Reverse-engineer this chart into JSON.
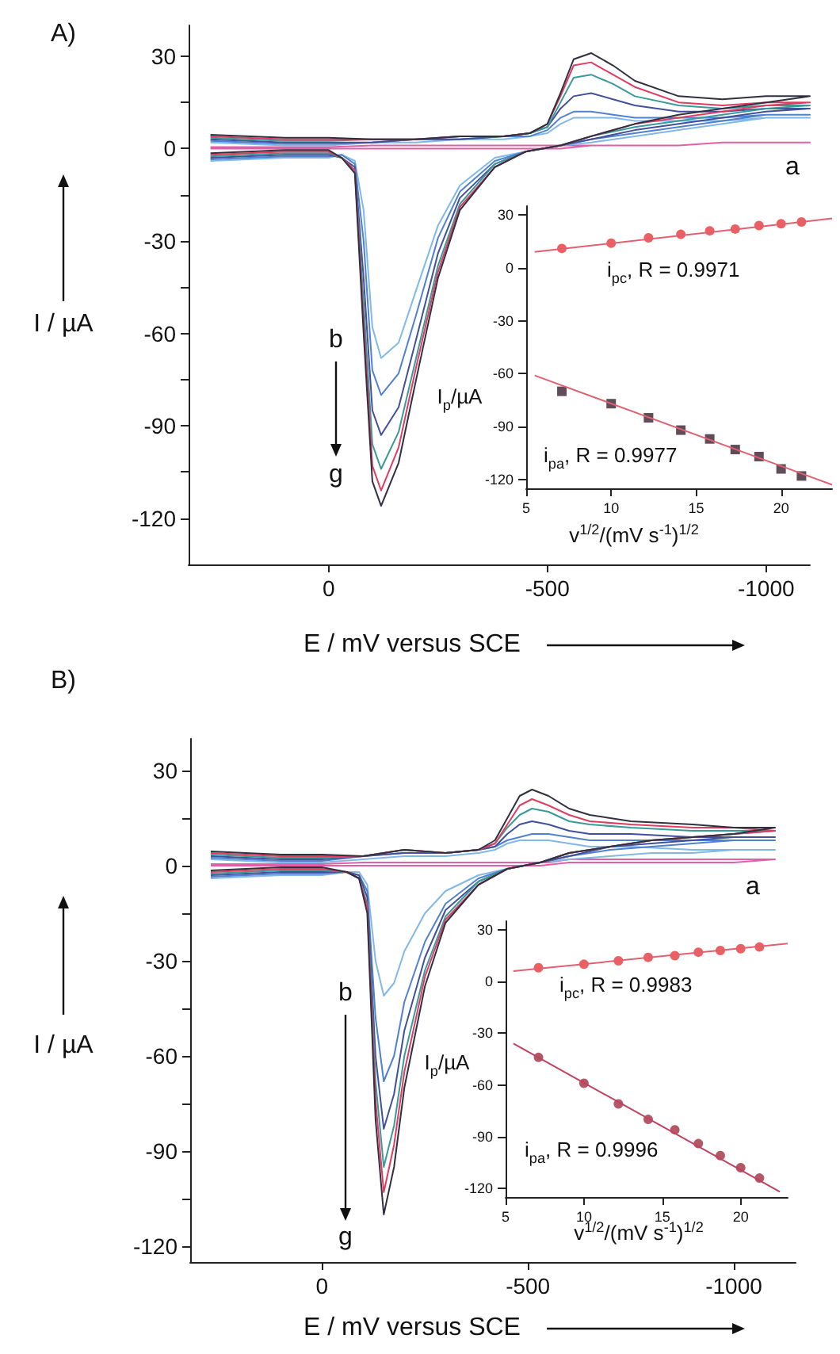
{
  "chart_data": [
    {
      "type": "line",
      "title": "A)",
      "xlabel": "E / mV versus SCE",
      "ylabel": "I / µA",
      "marker": "none",
      "xlim": [
        320,
        -1100
      ],
      "xticks": [
        0,
        -500,
        -1000
      ],
      "ylim": [
        -135,
        40
      ],
      "yticks": [
        30,
        {
          "value": 15,
          "label": null
        },
        0,
        {
          "value": -15,
          "label": null
        },
        -30,
        {
          "value": -45,
          "label": null
        },
        -60,
        {
          "value": -75,
          "label": null
        },
        -90,
        {
          "value": -105,
          "label": null
        },
        -120
      ],
      "annotations": [
        "a",
        "b",
        "g"
      ],
      "x": [
        270,
        100,
        0,
        -100,
        -200,
        -300,
        -400,
        -460,
        -500,
        -530,
        -560,
        -600,
        -650,
        -700,
        -800,
        -900,
        -1000,
        -1100,
        -1000,
        -900,
        -800,
        -700,
        -600,
        -530,
        -450,
        -380,
        -300,
        -250,
        -200,
        -160,
        -120,
        -100,
        -80,
        -60,
        -30,
        0,
        100,
        270
      ],
      "series": [
        {
          "color": "#e060a8",
          "values": [
            0.5,
            0.5,
            0.5,
            1,
            1,
            1,
            1,
            1,
            1,
            1,
            1,
            1,
            1,
            1,
            1,
            2,
            2,
            2,
            2,
            2,
            1,
            1,
            1,
            0,
            0,
            0,
            0,
            0,
            0,
            0,
            0,
            0,
            0,
            0,
            0,
            0,
            0,
            0
          ]
        },
        {
          "color": "#80b8e8",
          "values": [
            2,
            1,
            1,
            2,
            2,
            3,
            3,
            4,
            5,
            8,
            10,
            10,
            10,
            9,
            9,
            9,
            10,
            10,
            10,
            8,
            6,
            4,
            2,
            1,
            -1,
            -3,
            -12,
            -25,
            -46,
            -63,
            -68,
            -58,
            -20,
            -4,
            -2,
            -3,
            -3,
            -4
          ]
        },
        {
          "color": "#5080d0",
          "values": [
            2.5,
            1.5,
            1.5,
            2,
            3,
            3,
            4,
            4,
            6,
            10,
            12,
            12,
            11,
            10,
            10,
            10,
            11,
            11,
            11,
            9,
            7,
            5,
            3,
            1,
            -1,
            -4,
            -14,
            -29,
            -54,
            -73,
            -80,
            -72,
            -30,
            -5,
            -2,
            -2.5,
            -2.5,
            -3.5
          ]
        },
        {
          "color": "#40509a",
          "values": [
            3,
            2,
            2,
            2,
            3,
            3,
            4,
            5,
            7,
            13,
            17,
            18,
            16,
            14,
            12,
            12,
            13,
            13,
            12,
            10,
            8,
            6,
            3,
            1,
            -1,
            -5,
            -16,
            -34,
            -62,
            -84,
            -93,
            -85,
            -42,
            -6,
            -3,
            -2,
            -2,
            -3
          ]
        },
        {
          "color": "#3a9a9a",
          "values": [
            3.5,
            2.5,
            2.5,
            3,
            3,
            4,
            4,
            5,
            7,
            15,
            23,
            24,
            21,
            17,
            14,
            13,
            14,
            14,
            13,
            11,
            9,
            7,
            4,
            1,
            -1,
            -5,
            -18,
            -38,
            -68,
            -92,
            -104,
            -96,
            -50,
            -7,
            -3,
            -1.5,
            -1.5,
            -2.5
          ]
        },
        {
          "color": "#e03c60",
          "values": [
            4,
            3,
            3,
            3,
            3,
            4,
            4,
            5,
            8,
            17,
            27,
            28,
            24,
            20,
            15,
            14,
            15,
            15,
            14,
            12,
            10,
            8,
            4,
            1,
            -1,
            -6,
            -19,
            -40,
            -71,
            -97,
            -111,
            -103,
            -56,
            -7,
            -3,
            -1,
            -1,
            -2
          ]
        },
        {
          "color": "#303040",
          "values": [
            4.5,
            3.5,
            3.5,
            3,
            3,
            4,
            4,
            5,
            8,
            18,
            29,
            31,
            27,
            22,
            17,
            16,
            17,
            17,
            15,
            13,
            11,
            8,
            4,
            1,
            -1,
            -6,
            -20,
            -42,
            -75,
            -102,
            -116,
            -108,
            -60,
            -8,
            -3,
            -0.5,
            -0.5,
            -1.5
          ]
        }
      ]
    },
    {
      "type": "scatter",
      "xlabel": "v$^{1/2}$/(mV s$^{-1}$)$^{1/2}$",
      "ylabel": "I$_{p}$/µA",
      "xlim": [
        5,
        23
      ],
      "xticks": [
        5,
        10,
        15,
        20
      ],
      "ylim": [
        -125,
        35
      ],
      "yticks": [
        30,
        0,
        -30,
        -60,
        -90,
        -120
      ],
      "annotations": [
        "i$_{pc}$, R = 0.9971",
        "i$_{pa}$, R = 0.9977"
      ],
      "series": [
        {
          "type": "line",
          "marker": "none",
          "color": "#e06070",
          "x": [
            5.5,
            23
          ],
          "values": [
            9,
            28
          ]
        },
        {
          "type": "line",
          "marker": "none",
          "color": "#e06070",
          "x": [
            5.5,
            23
          ],
          "values": [
            -61,
            -123
          ]
        },
        {
          "marker": "circle",
          "color": "#e8383a",
          "x": [
            7.1,
            10,
            12.2,
            14.1,
            15.8,
            17.3,
            18.7,
            20,
            21.2
          ],
          "values": [
            11,
            14,
            17,
            19,
            21,
            22,
            24,
            25,
            26
          ]
        },
        {
          "marker": "square",
          "color": "#3a2030",
          "x": [
            7.1,
            10,
            12.2,
            14.1,
            15.8,
            17.3,
            18.7,
            20,
            21.2
          ],
          "values": [
            -70,
            -77,
            -85,
            -92,
            -97,
            -103,
            -107,
            -114,
            -118
          ]
        }
      ]
    },
    {
      "type": "line",
      "title": "B)",
      "xlabel": "E / mV versus SCE",
      "ylabel": "I / µA",
      "marker": "none",
      "xlim": [
        320,
        -1150
      ],
      "xticks": [
        0,
        -500,
        -1000
      ],
      "ylim": [
        -125,
        40
      ],
      "yticks": [
        30,
        {
          "value": 15,
          "label": null
        },
        0,
        {
          "value": -15,
          "label": null
        },
        -30,
        {
          "value": -45,
          "label": null
        },
        -60,
        {
          "value": -75,
          "label": null
        },
        -90,
        {
          "value": -105,
          "label": null
        },
        -120
      ],
      "annotations": [
        "a",
        "b",
        "g"
      ],
      "x": [
        270,
        100,
        0,
        -100,
        -200,
        -300,
        -380,
        -420,
        -450,
        -480,
        -510,
        -550,
        -600,
        -650,
        -750,
        -900,
        -1000,
        -1100,
        -1000,
        -900,
        -800,
        -700,
        -600,
        -530,
        -450,
        -380,
        -300,
        -250,
        -200,
        -175,
        -150,
        -130,
        -110,
        -90,
        -60,
        0,
        100,
        270
      ],
      "series": [
        {
          "color": "#e060a8",
          "values": [
            0.5,
            0.5,
            0.5,
            1,
            1,
            1,
            1,
            1,
            1,
            1,
            1,
            1,
            2,
            2,
            2,
            2,
            2,
            2,
            1,
            1,
            1,
            1,
            1,
            0,
            0,
            0,
            0,
            0,
            0,
            0,
            0,
            0,
            0,
            0,
            0,
            0,
            0,
            0
          ]
        },
        {
          "color": "#80b8e8",
          "values": [
            2,
            1,
            1,
            2,
            3,
            3,
            4,
            5,
            7,
            8,
            8,
            8,
            7,
            6,
            6,
            5,
            5,
            5,
            5,
            4,
            4,
            3,
            2,
            1,
            -1,
            -3,
            -8,
            -15,
            -27,
            -37,
            -41,
            -30,
            -6,
            -2,
            -2,
            -3,
            -3,
            -4
          ]
        },
        {
          "color": "#5080d0",
          "values": [
            2.5,
            1.5,
            1.5,
            3,
            4,
            4,
            5,
            6,
            8,
            9,
            10,
            10,
            9,
            8,
            8,
            8,
            8,
            8,
            8,
            7,
            6,
            5,
            3,
            1,
            -1,
            -4,
            -12,
            -24,
            -43,
            -60,
            -68,
            -48,
            -8,
            -3,
            -2,
            -2.5,
            -2.5,
            -3.5
          ]
        },
        {
          "color": "#40509a",
          "values": [
            3,
            2,
            2,
            3,
            4,
            4,
            5,
            6,
            10,
            13,
            14,
            13,
            11,
            10,
            10,
            9,
            9,
            9,
            9,
            8,
            7,
            6,
            3,
            1,
            -1,
            -5,
            -14,
            -29,
            -52,
            -72,
            -83,
            -60,
            -10,
            -3,
            -2,
            -2,
            -2,
            -3
          ]
        },
        {
          "color": "#3a9a9a",
          "values": [
            3.5,
            2.5,
            2.5,
            3,
            5,
            4,
            5,
            7,
            12,
            16,
            18,
            17,
            14,
            13,
            12,
            11,
            11,
            11,
            10,
            9,
            8,
            6,
            4,
            1,
            -1,
            -5,
            -16,
            -33,
            -60,
            -82,
            -95,
            -68,
            -12,
            -4,
            -2,
            -1.5,
            -1.5,
            -2.5
          ]
        },
        {
          "color": "#e03c60",
          "values": [
            4,
            3,
            3,
            3,
            5,
            4,
            5,
            7,
            13,
            19,
            21,
            19,
            16,
            14,
            13,
            12,
            12,
            11,
            10,
            9,
            8,
            6,
            4,
            1,
            -1,
            -6,
            -17,
            -35,
            -65,
            -88,
            -103,
            -74,
            -13,
            -4,
            -2,
            -1,
            -1,
            -2
          ]
        },
        {
          "color": "#303040",
          "values": [
            4.5,
            3.5,
            3.5,
            3,
            5,
            4,
            5,
            8,
            15,
            22,
            24,
            22,
            18,
            16,
            14,
            13,
            12,
            12,
            10,
            9,
            8,
            6,
            4,
            1,
            -1,
            -6,
            -18,
            -38,
            -70,
            -95,
            -110,
            -80,
            -15,
            -4,
            -2,
            -0.5,
            -0.5,
            -1.5
          ]
        }
      ]
    },
    {
      "type": "scatter",
      "xlabel": "v$^{1/2}$/(mV s$^{-1}$)$^{1/2}$",
      "ylabel": "I$_{p}$/µA",
      "xlim": [
        5,
        23
      ],
      "xticks": [
        5,
        10,
        15,
        20
      ],
      "ylim": [
        -125,
        35
      ],
      "yticks": [
        30,
        0,
        -30,
        -60,
        -90,
        -120
      ],
      "annotations": [
        "i$_{pc}$, R = 0.9983",
        "i$_{pa}$, R = 0.9996"
      ],
      "series": [
        {
          "type": "line",
          "marker": "none",
          "color": "#e06070",
          "x": [
            5.5,
            23
          ],
          "values": [
            6,
            22
          ]
        },
        {
          "type": "line",
          "marker": "none",
          "color": "#c04060",
          "x": [
            5.5,
            22.5
          ],
          "values": [
            -36,
            -122
          ]
        },
        {
          "marker": "circle",
          "color": "#e8383a",
          "x": [
            7.1,
            10,
            12.2,
            14.1,
            15.8,
            17.3,
            18.7,
            20,
            21.2
          ],
          "values": [
            8,
            10,
            12,
            14,
            15,
            17,
            18,
            19,
            20
          ]
        },
        {
          "marker": "circle",
          "color": "#a03040",
          "x": [
            7.1,
            10,
            12.2,
            14.1,
            15.8,
            17.3,
            18.7,
            20,
            21.2
          ],
          "values": [
            -44,
            -59,
            -71,
            -80,
            -86,
            -94,
            -101,
            -108,
            -114
          ]
        }
      ]
    }
  ]
}
